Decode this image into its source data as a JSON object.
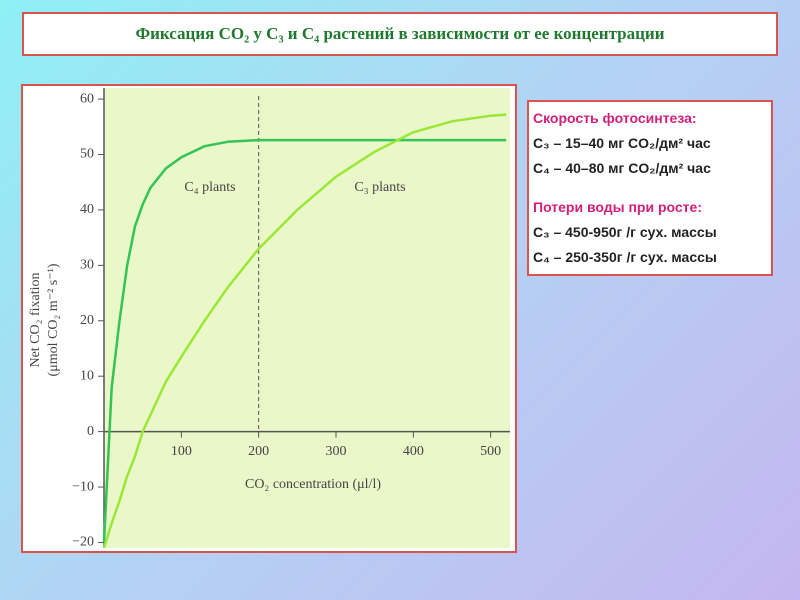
{
  "chart_data": {
    "type": "line",
    "title": "Фиксация CO₂ у C₃ и C₄ растений в зависимости от ее концентрации",
    "x_label": "CO₂ concentration (μl/l)",
    "y_label": [
      "Net CO₂ fixation",
      "(μmol CO₂ m⁻² s⁻¹)"
    ],
    "annotations": [
      "C₄ plants",
      "C₃ plants"
    ],
    "vline": 200,
    "x": [
      0,
      10,
      20,
      30,
      40,
      50,
      60,
      80,
      100,
      130,
      160,
      200,
      250,
      300,
      350,
      400,
      450,
      500,
      520
    ],
    "series": [
      {
        "name": "C₄ plants",
        "color": "#33c455",
        "values": [
          -20,
          8,
          20,
          30,
          37,
          41,
          44,
          47.5,
          49.5,
          51.5,
          52.3,
          52.6,
          52.6,
          52.6,
          52.6,
          52.6,
          52.6,
          52.6,
          52.6
        ]
      },
      {
        "name": "C₃ plants",
        "color": "#9ae836",
        "values": [
          -21,
          -16.5,
          -12.5,
          -8,
          -4.5,
          0,
          3,
          9,
          13.5,
          20,
          26,
          33,
          40,
          46,
          50.5,
          54,
          56,
          57,
          57.2
        ]
      }
    ],
    "xlim": [
      0,
      525
    ],
    "ylim": [
      -21,
      62
    ],
    "xticks": [
      100,
      200,
      300,
      400,
      500
    ],
    "yticks": [
      {
        "value": -20,
        "label": "−20"
      },
      {
        "value": -10,
        "label": "−10"
      },
      0,
      10,
      20,
      30,
      40,
      50,
      60
    ]
  },
  "info": {
    "heading1": "Скорость фотосинтеза:",
    "lines1": [
      "C₃ – 15–40 мг CO₂/дм² час",
      "C₄ – 40–80 мг CO₂/дм² час"
    ],
    "heading2": "Потери воды при росте:",
    "lines2": [
      "C₃ – 450-950г /г сух. массы",
      "C₄ – 250-350г /г сух. массы"
    ]
  }
}
